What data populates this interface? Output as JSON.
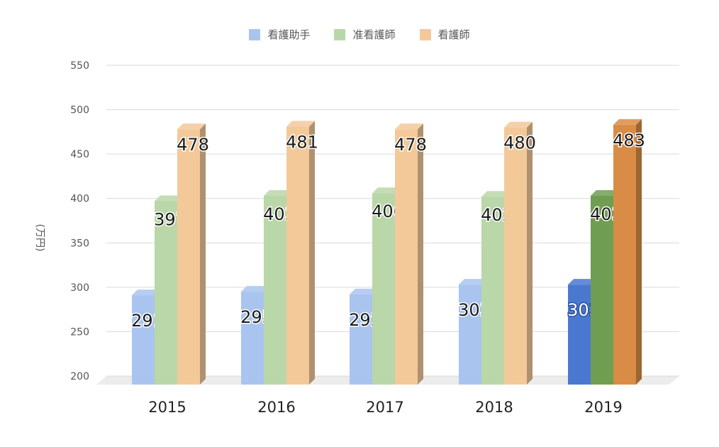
{
  "chart_data": {
    "type": "bar",
    "categories": [
      "2015",
      "2016",
      "2017",
      "2018",
      "2019"
    ],
    "series": [
      {
        "name": "看護助手",
        "values": [
          291,
          295,
          292,
          303,
          303
        ]
      },
      {
        "name": "准看護師",
        "values": [
          397,
          403,
          406,
          402,
          403
        ]
      },
      {
        "name": "看護師",
        "values": [
          478,
          481,
          478,
          480,
          483
        ]
      }
    ],
    "ylabel": "(万円)",
    "ylim": [
      200,
      550
    ],
    "yticks": [
      "200",
      "250",
      "300",
      "350",
      "400",
      "450",
      "500",
      "550"
    ],
    "grid": true,
    "legend": "top",
    "colors": {
      "light": [
        "#a9c4ef",
        "#b9d7a8",
        "#f3c99a"
      ],
      "highlight": [
        "#4a78d1",
        "#6f9e52",
        "#d98c45"
      ]
    },
    "highlight_category": "2019"
  }
}
